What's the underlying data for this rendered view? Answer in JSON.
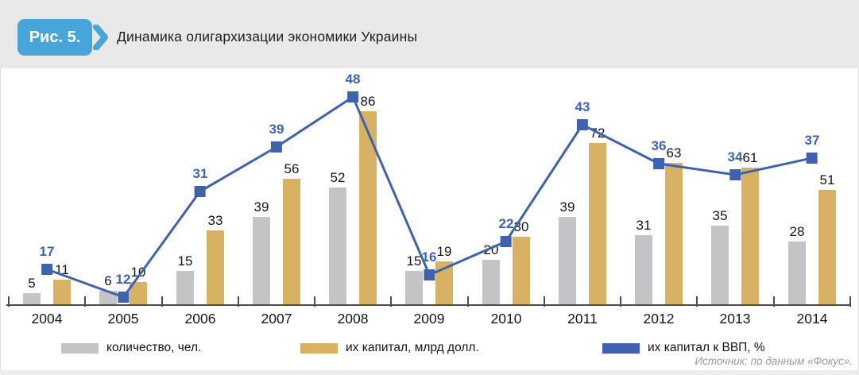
{
  "header": {
    "figure_label": "Рис. 5.",
    "title": "Динамика олигархизации экономики Украины",
    "badge_color": "#48a5da"
  },
  "chart_data": {
    "type": "bar",
    "subtype": "combo-bar-line",
    "title": "Динамика олигархизации экономики Украины",
    "categories": [
      "2004",
      "2005",
      "2006",
      "2007",
      "2008",
      "2009",
      "2010",
      "2011",
      "2012",
      "2013",
      "2014"
    ],
    "series": [
      {
        "name": "количество, чел.",
        "type": "bar",
        "color": "#c4c4c6",
        "values": [
          5,
          6,
          15,
          39,
          52,
          15,
          20,
          39,
          31,
          35,
          28
        ]
      },
      {
        "name": "их капитал, млрд долл.",
        "type": "bar",
        "color": "#d7b265",
        "values": [
          11,
          10,
          33,
          56,
          86,
          19,
          30,
          72,
          63,
          61,
          51
        ]
      },
      {
        "name": "их капитал к ВВП, %",
        "type": "line",
        "color": "#4061ae",
        "label_color": "#3d63b2",
        "values": [
          17,
          12,
          31,
          39,
          48,
          16,
          22,
          43,
          36,
          34,
          37
        ]
      }
    ],
    "xlabel": "",
    "ylabel": "",
    "value_axis_visible": false,
    "data_labels": true,
    "gridlines": false,
    "legend_position": "bottom"
  },
  "footer": {
    "source": "Источник: по данным «Фокус»."
  }
}
